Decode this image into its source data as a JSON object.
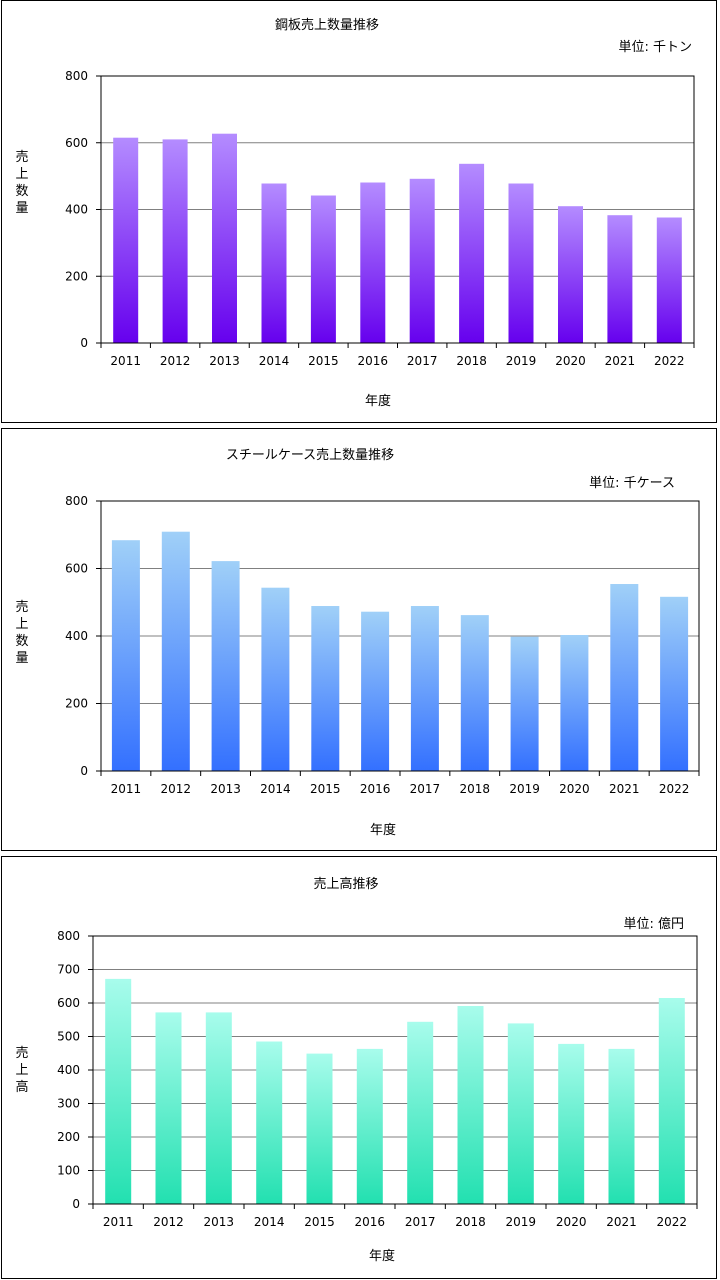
{
  "chart_data": [
    {
      "type": "bar",
      "title": "鋼板売上数量推移",
      "unit": "単位: 千トン",
      "ylabel": "売上数量",
      "xlabel": "年度",
      "categories": [
        "2011",
        "2012",
        "2013",
        "2014",
        "2015",
        "2016",
        "2017",
        "2018",
        "2019",
        "2020",
        "2021",
        "2022"
      ],
      "values": [
        615,
        610,
        627,
        478,
        442,
        481,
        492,
        537,
        478,
        410,
        383,
        376
      ],
      "ylim": [
        0,
        800
      ],
      "yticks": [
        0,
        200,
        400,
        600,
        800
      ],
      "grid": true,
      "colors": {
        "top": "#b48cff",
        "bottom": "#6600ee"
      }
    },
    {
      "type": "bar",
      "title": "スチールケース売上数量推移",
      "unit": "単位: 千ケース",
      "ylabel": "売上数量",
      "xlabel": "年度",
      "categories": [
        "2011",
        "2012",
        "2013",
        "2014",
        "2015",
        "2016",
        "2017",
        "2018",
        "2019",
        "2020",
        "2021",
        "2022"
      ],
      "values": [
        684,
        709,
        622,
        543,
        489,
        472,
        489,
        462,
        398,
        403,
        554,
        516
      ],
      "ylim": [
        0,
        800
      ],
      "yticks": [
        0,
        200,
        400,
        600,
        800
      ],
      "grid": true,
      "colors": {
        "top": "#a0d0f8",
        "bottom": "#3370ff"
      }
    },
    {
      "type": "bar",
      "title": "売上高推移",
      "unit": "単位: 億円",
      "ylabel": "売上高",
      "xlabel": "年度",
      "categories": [
        "2011",
        "2012",
        "2013",
        "2014",
        "2015",
        "2016",
        "2017",
        "2018",
        "2019",
        "2020",
        "2021",
        "2022"
      ],
      "values": [
        672,
        572,
        572,
        485,
        449,
        463,
        544,
        591,
        539,
        478,
        463,
        615
      ],
      "ylim": [
        0,
        800
      ],
      "yticks": [
        0,
        100,
        200,
        300,
        400,
        500,
        600,
        700,
        800
      ],
      "grid": true,
      "colors": {
        "top": "#a8fcec",
        "bottom": "#22e0b0"
      }
    }
  ]
}
